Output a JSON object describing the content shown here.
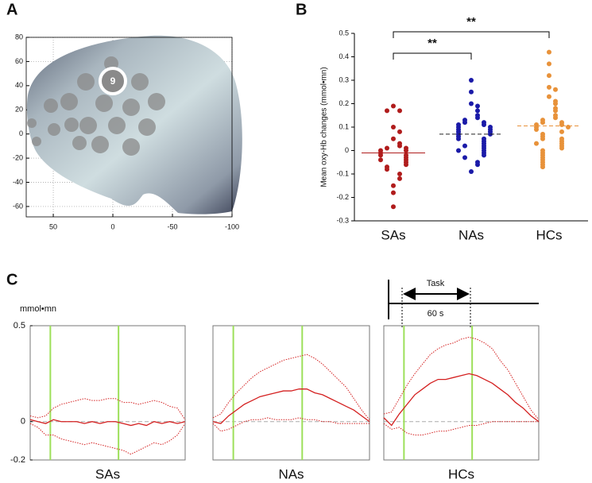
{
  "panel_labels": [
    "A",
    "B",
    "C"
  ],
  "task_diagram": {
    "label": "Task",
    "duration": "60 s"
  },
  "chart_data": [
    {
      "type": "brain",
      "xlim": [
        72.7,
        -100
      ],
      "xticks": [
        50,
        0,
        -50,
        -100
      ],
      "ylim": [
        -68.6,
        80
      ],
      "yticks": [
        -60,
        -40,
        -20,
        0,
        20,
        40,
        60,
        80
      ],
      "grid": true,
      "channel_label": "9"
    },
    {
      "type": "strip",
      "ylabel": "Mean oxy-Hb changes (mmol•mn)",
      "categories": [
        "SAs",
        "NAs",
        "HCs"
      ],
      "colors": [
        "#b01c1c",
        "#1a1aa8",
        "#e8923a"
      ],
      "values": [
        [
          0.19,
          0.17,
          0.17,
          0.1,
          0.08,
          0.05,
          0.03,
          0.02,
          0.01,
          0.01,
          0,
          0,
          -0.01,
          -0.02,
          -0.02,
          -0.03,
          -0.04,
          -0.04,
          -0.05,
          -0.06,
          -0.07,
          -0.08,
          -0.1,
          -0.12,
          -0.15,
          -0.18,
          -0.24
        ],
        [
          0.3,
          0.25,
          0.2,
          0.19,
          0.17,
          0.15,
          0.14,
          0.13,
          0.12,
          0.12,
          0.11,
          0.11,
          0.1,
          0.1,
          0.09,
          0.09,
          0.08,
          0.08,
          0.07,
          0.07,
          0.06,
          0.05,
          0.05,
          0.04,
          0.03,
          0.02,
          0.02,
          0.01,
          0,
          0,
          -0.01,
          -0.02,
          -0.03,
          -0.05,
          -0.06,
          -0.09
        ],
        [
          0.42,
          0.37,
          0.32,
          0.27,
          0.26,
          0.23,
          0.21,
          0.2,
          0.18,
          0.17,
          0.15,
          0.14,
          0.13,
          0.12,
          0.12,
          0.11,
          0.11,
          0.1,
          0.1,
          0.09,
          0.08,
          0.07,
          0.06,
          0.05,
          0.05,
          0.04,
          0.03,
          0.03,
          0.02,
          0.01,
          0,
          -0.01,
          -0.02,
          -0.03,
          -0.04,
          -0.05,
          -0.06,
          -0.07
        ]
      ],
      "means": [
        -0.01,
        0.07,
        0.105
      ],
      "mean_colors": [
        "#b01c1c",
        "#222222",
        "#e8923a"
      ],
      "significance": [
        {
          "from": 0,
          "to": 1,
          "label": "**"
        },
        {
          "from": 0,
          "to": 2,
          "label": "**"
        }
      ],
      "ylim": [
        -0.3,
        0.5
      ],
      "yticks": [
        -0.3,
        -0.2,
        -0.1,
        0,
        0.1,
        0.2,
        0.3,
        0.4,
        0.5
      ]
    },
    {
      "type": "line",
      "title": "SAs",
      "ylabel": "mmol•mn",
      "ylim": [
        -0.2,
        0.5
      ],
      "yticks": [
        -0.2,
        0,
        0.5
      ],
      "vlines": [
        2.6,
        11.4
      ],
      "vline_color": "#9de05a",
      "series": [
        {
          "color": "#d42020",
          "style": "solid",
          "values": [
            0.01,
            0,
            -0.01,
            0.01,
            0,
            0,
            0,
            -0.01,
            0,
            -0.01,
            0,
            0,
            -0.01,
            -0.02,
            -0.01,
            -0.02,
            0,
            -0.01,
            0,
            -0.01,
            0
          ]
        },
        {
          "color": "#d42020",
          "style": "dotted",
          "values": [
            0.03,
            0.02,
            0.03,
            0.07,
            0.09,
            0.1,
            0.11,
            0.12,
            0.11,
            0.11,
            0.12,
            0.12,
            0.1,
            0.1,
            0.09,
            0.1,
            0.11,
            0.1,
            0.08,
            0.07,
            0.01
          ]
        },
        {
          "color": "#d42020",
          "style": "dotted",
          "values": [
            -0.01,
            -0.03,
            -0.07,
            -0.07,
            -0.09,
            -0.1,
            -0.11,
            -0.12,
            -0.11,
            -0.12,
            -0.13,
            -0.14,
            -0.15,
            -0.17,
            -0.15,
            -0.13,
            -0.11,
            -0.12,
            -0.1,
            -0.07,
            -0.01
          ]
        }
      ]
    },
    {
      "type": "line",
      "title": "NAs",
      "ylim": [
        -0.2,
        0.5
      ],
      "vlines": [
        2.6,
        11.4
      ],
      "vline_color": "#9de05a",
      "series": [
        {
          "color": "#d42020",
          "style": "solid",
          "values": [
            0,
            -0.01,
            0.03,
            0.06,
            0.09,
            0.11,
            0.13,
            0.14,
            0.15,
            0.16,
            0.16,
            0.17,
            0.17,
            0.15,
            0.14,
            0.12,
            0.1,
            0.08,
            0.06,
            0.03,
            0
          ]
        },
        {
          "color": "#d42020",
          "style": "dotted",
          "values": [
            0.02,
            0.04,
            0.1,
            0.15,
            0.19,
            0.23,
            0.26,
            0.28,
            0.3,
            0.32,
            0.33,
            0.34,
            0.35,
            0.33,
            0.3,
            0.26,
            0.22,
            0.18,
            0.12,
            0.06,
            0.01
          ]
        },
        {
          "color": "#d42020",
          "style": "dotted",
          "values": [
            -0.01,
            -0.05,
            -0.04,
            -0.02,
            0,
            0.01,
            0.01,
            0.02,
            0.01,
            0.01,
            0.01,
            0.02,
            0.01,
            0.01,
            0,
            0,
            -0.01,
            -0.01,
            -0.01,
            -0.01,
            -0.01
          ]
        }
      ]
    },
    {
      "type": "line",
      "title": "HCs",
      "ylim": [
        -0.2,
        0.5
      ],
      "vlines": [
        2.6,
        11.4
      ],
      "vline_color": "#9de05a",
      "series": [
        {
          "color": "#d42020",
          "style": "solid",
          "values": [
            0.02,
            -0.02,
            0.04,
            0.09,
            0.14,
            0.17,
            0.2,
            0.22,
            0.22,
            0.23,
            0.24,
            0.25,
            0.24,
            0.22,
            0.2,
            0.17,
            0.14,
            0.1,
            0.07,
            0.03,
            0
          ]
        },
        {
          "color": "#d42020",
          "style": "dotted",
          "values": [
            0.04,
            0.05,
            0.12,
            0.19,
            0.25,
            0.3,
            0.35,
            0.38,
            0.4,
            0.41,
            0.43,
            0.44,
            0.43,
            0.41,
            0.38,
            0.32,
            0.27,
            0.2,
            0.13,
            0.06,
            0.01
          ]
        },
        {
          "color": "#d42020",
          "style": "dotted",
          "values": [
            -0.01,
            -0.04,
            -0.03,
            -0.06,
            -0.07,
            -0.07,
            -0.06,
            -0.05,
            -0.05,
            -0.04,
            -0.03,
            -0.02,
            -0.02,
            -0.01,
            0,
            0,
            0,
            0,
            0,
            0,
            0
          ]
        }
      ]
    }
  ]
}
